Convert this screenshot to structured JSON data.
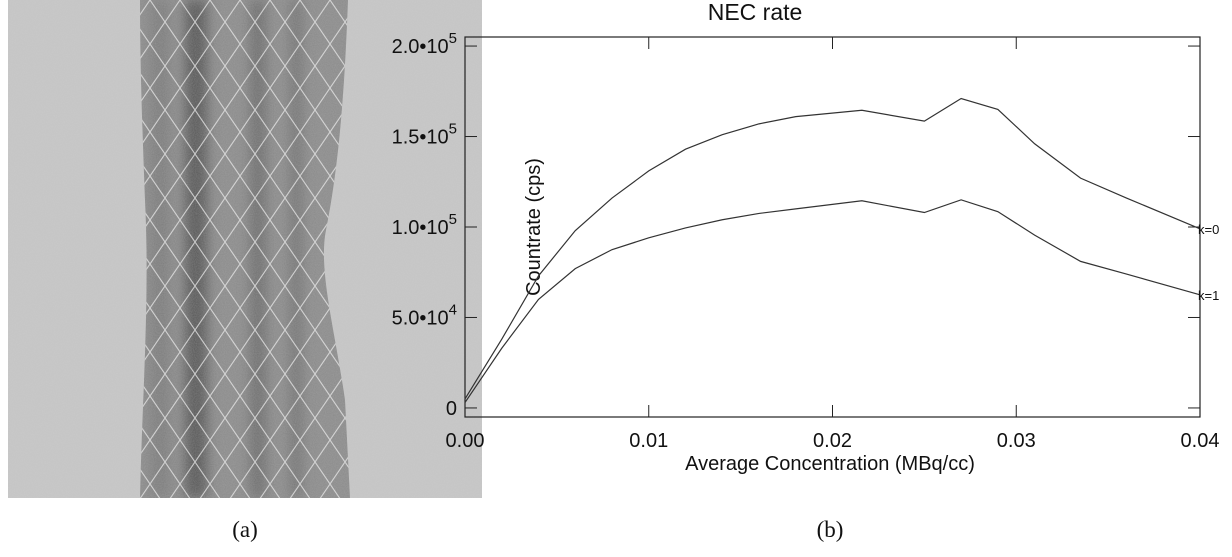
{
  "captions": [
    "(a)",
    "(b)"
  ],
  "chart_data": {
    "type": "line",
    "title": "NEC rate",
    "xlabel": "Average Concentration (MBq/cc)",
    "ylabel": "Countrate (cps)",
    "x": [
      0,
      0.002,
      0.004,
      0.006,
      0.008,
      0.01,
      0.012,
      0.014,
      0.016,
      0.018,
      0.0216,
      0.025,
      0.027,
      0.029,
      0.031,
      0.0335,
      0.036,
      0.04
    ],
    "series": [
      {
        "name": "k=0",
        "color": "#333333",
        "values": [
          5000,
          38000,
          73000,
          98000,
          116000,
          131000,
          143000,
          151000,
          157000,
          161000,
          164500,
          158500,
          171000,
          165000,
          146000,
          127000,
          116000,
          99000
        ]
      },
      {
        "name": "k=1",
        "color": "#333333",
        "values": [
          3000,
          33000,
          60000,
          77000,
          87500,
          94000,
          99500,
          104000,
          107500,
          110000,
          114500,
          108000,
          115000,
          108500,
          95500,
          81000,
          74000,
          62500
        ]
      }
    ],
    "xlim": [
      0,
      0.04
    ],
    "ylim": [
      -5000,
      205000
    ],
    "xticks": [
      {
        "value": 0,
        "label": "0.00"
      },
      0.01,
      0.02,
      0.03,
      0.04
    ],
    "yticks": [
      0,
      {
        "value": 50000,
        "label": "5.0•10^4"
      },
      {
        "value": 100000,
        "label": "1.0•10^5"
      },
      {
        "value": 150000,
        "label": "1.5•10^5"
      },
      {
        "value": 200000,
        "label": "2.0•10^5"
      }
    ]
  }
}
